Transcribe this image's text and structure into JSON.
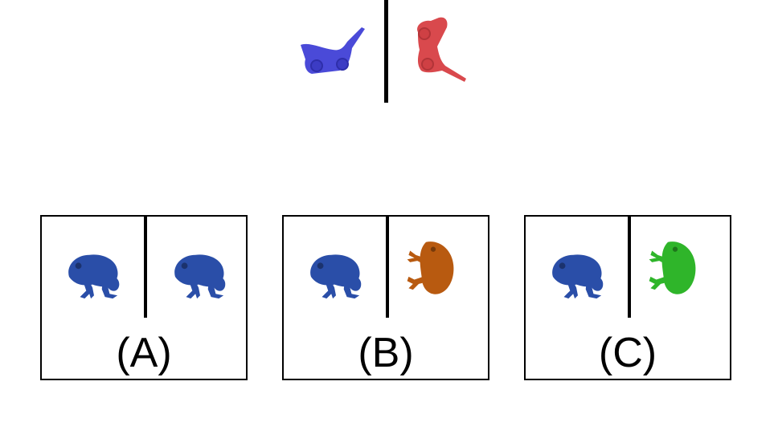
{
  "example": {
    "left_object": {
      "icon": "toy-wagon",
      "color": "#4a4ad8"
    },
    "right_object": {
      "icon": "toy-wagon",
      "color": "#d9494d"
    }
  },
  "options": [
    {
      "label": "(A)",
      "left": {
        "icon": "frog",
        "color": "#2a4ea8"
      },
      "right": {
        "icon": "frog",
        "color": "#2a4ea8"
      }
    },
    {
      "label": "(B)",
      "left": {
        "icon": "frog",
        "color": "#2a4ea8"
      },
      "right": {
        "icon": "frog",
        "color": "#b85a10"
      }
    },
    {
      "label": "(C)",
      "left": {
        "icon": "frog",
        "color": "#2a4ea8"
      },
      "right": {
        "icon": "frog",
        "color": "#2fb52a"
      }
    }
  ]
}
